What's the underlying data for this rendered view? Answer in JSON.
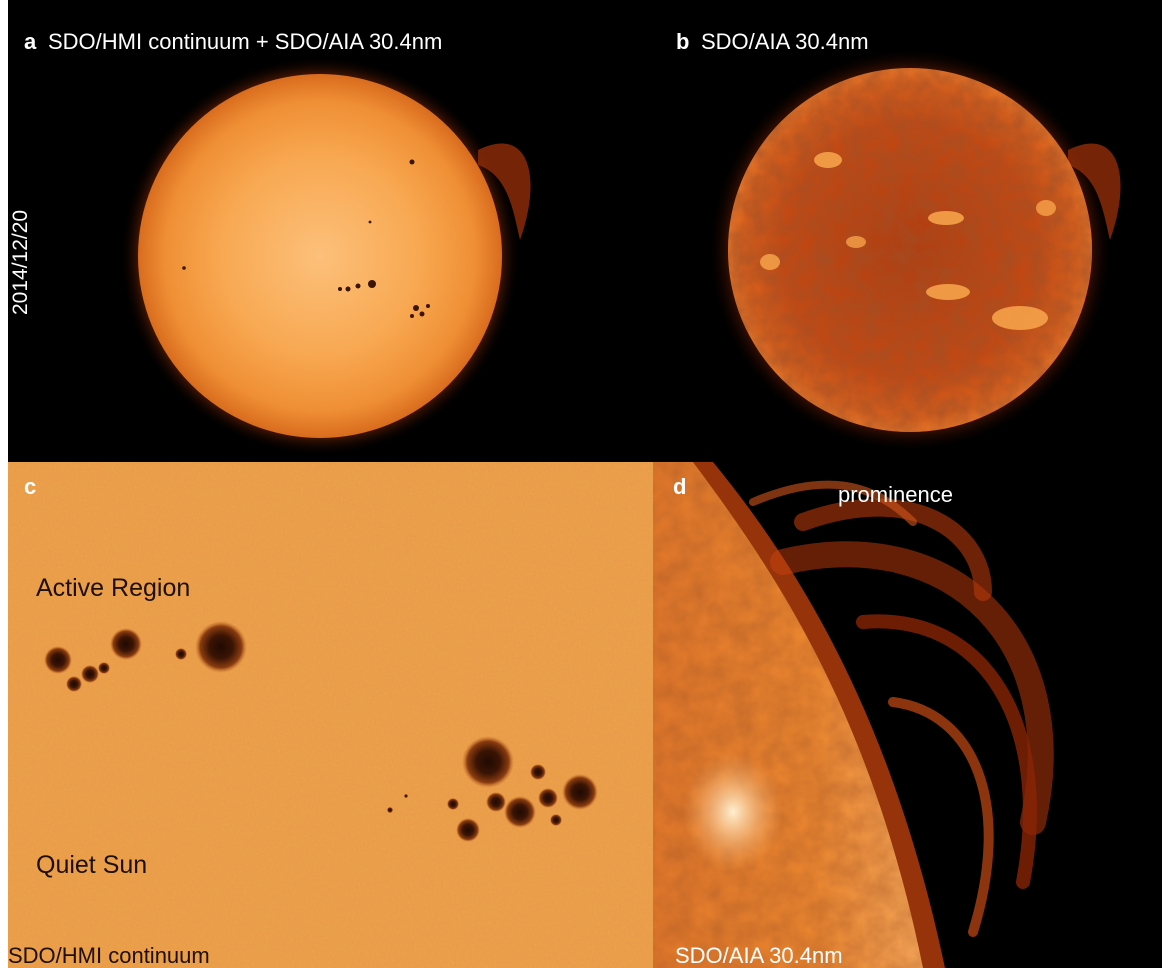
{
  "panels": {
    "a": {
      "letter": "a",
      "title": "SDO/HMI continuum + SDO/AIA 30.4nm",
      "date": "2014/12/20"
    },
    "b": {
      "letter": "b",
      "title": "SDO/AIA 30.4nm"
    },
    "c": {
      "letter": "c",
      "labels": {
        "active": "Active Region",
        "quiet": "Quiet Sun"
      },
      "caption": "SDO/HMI continuum"
    },
    "d": {
      "letter": "d",
      "label": "prominence",
      "caption": "SDO/AIA 30.4nm"
    }
  },
  "colors": {
    "background": "#000000",
    "photosphere": "#f7a24a",
    "chromosphere": "#c8400c",
    "sunspot": "#3a1404",
    "label_light": "#ffffff",
    "label_dark": "#1d0f05"
  }
}
